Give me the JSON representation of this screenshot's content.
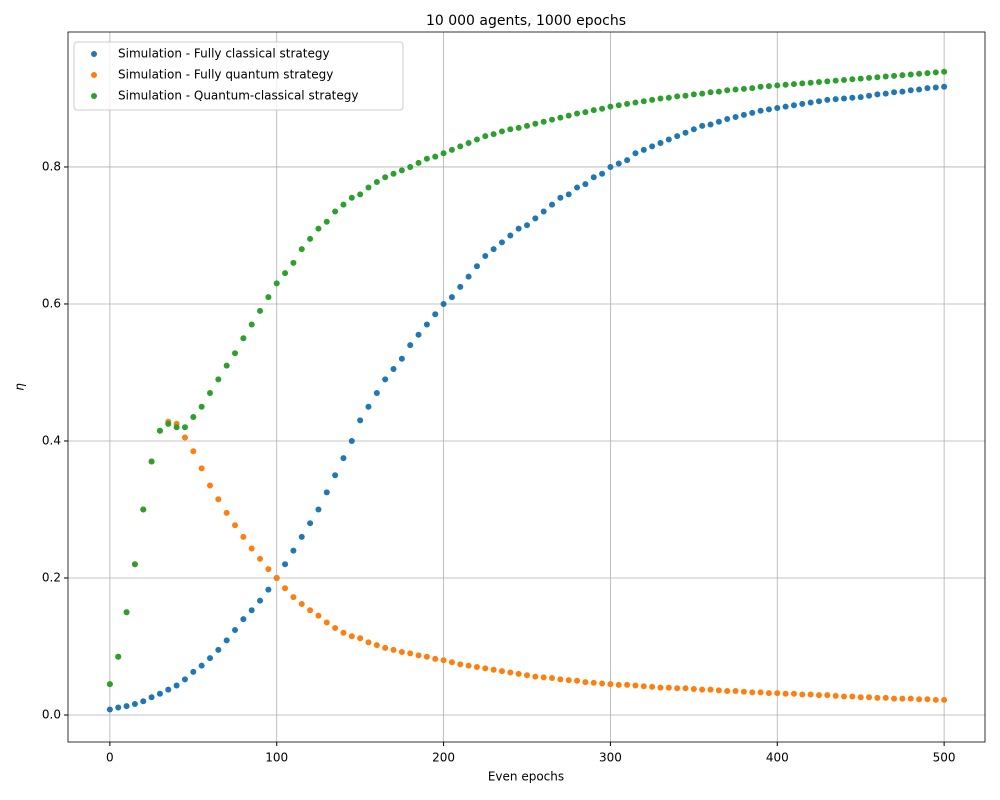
{
  "chart_data": {
    "type": "scatter",
    "title": "10 000 agents, 1000 epochs",
    "xlabel": "Even epochs",
    "ylabel": "η",
    "x": [
      0,
      5,
      10,
      15,
      20,
      25,
      30,
      35,
      40,
      45,
      50,
      55,
      60,
      65,
      70,
      75,
      80,
      85,
      90,
      95,
      100,
      105,
      110,
      115,
      120,
      125,
      130,
      135,
      140,
      145,
      150,
      155,
      160,
      165,
      170,
      175,
      180,
      185,
      190,
      195,
      200,
      205,
      210,
      215,
      220,
      225,
      230,
      235,
      240,
      245,
      250,
      255,
      260,
      265,
      270,
      275,
      280,
      285,
      290,
      295,
      300,
      305,
      310,
      315,
      320,
      325,
      330,
      335,
      340,
      345,
      350,
      355,
      360,
      365,
      370,
      375,
      380,
      385,
      390,
      395,
      400,
      405,
      410,
      415,
      420,
      425,
      430,
      435,
      440,
      445,
      450,
      455,
      460,
      465,
      470,
      475,
      480,
      485,
      490,
      495,
      500
    ],
    "series": [
      {
        "name": "Simulation - Fully classical strategy",
        "color": "#1f77b4",
        "values": [
          0.008,
          0.011,
          0.013,
          0.016,
          0.02,
          0.026,
          0.031,
          0.037,
          0.043,
          0.052,
          0.063,
          0.072,
          0.083,
          0.095,
          0.109,
          0.124,
          0.14,
          0.153,
          0.167,
          0.183,
          0.2,
          0.22,
          0.24,
          0.26,
          0.28,
          0.3,
          0.325,
          0.35,
          0.375,
          0.4,
          0.43,
          0.45,
          0.47,
          0.49,
          0.505,
          0.52,
          0.54,
          0.555,
          0.57,
          0.585,
          0.6,
          0.61,
          0.625,
          0.64,
          0.655,
          0.67,
          0.68,
          0.69,
          0.7,
          0.71,
          0.715,
          0.725,
          0.735,
          0.745,
          0.755,
          0.76,
          0.77,
          0.775,
          0.785,
          0.79,
          0.8,
          0.805,
          0.81,
          0.82,
          0.825,
          0.83,
          0.835,
          0.84,
          0.845,
          0.85,
          0.855,
          0.86,
          0.862,
          0.866,
          0.87,
          0.873,
          0.876,
          0.879,
          0.882,
          0.884,
          0.886,
          0.888,
          0.89,
          0.892,
          0.894,
          0.896,
          0.898,
          0.899,
          0.9,
          0.901,
          0.902,
          0.904,
          0.906,
          0.907,
          0.909,
          0.91,
          0.912,
          0.913,
          0.915,
          0.916,
          0.917
        ]
      },
      {
        "name": "Simulation - Fully quantum strategy",
        "color": "#ff7f0e",
        "values": [
          0.045,
          0.085,
          0.15,
          0.22,
          0.3,
          0.37,
          0.415,
          0.428,
          0.425,
          0.405,
          0.385,
          0.36,
          0.335,
          0.315,
          0.295,
          0.277,
          0.26,
          0.243,
          0.228,
          0.213,
          0.2,
          0.185,
          0.172,
          0.162,
          0.153,
          0.145,
          0.135,
          0.127,
          0.12,
          0.115,
          0.112,
          0.106,
          0.102,
          0.098,
          0.095,
          0.092,
          0.09,
          0.087,
          0.085,
          0.082,
          0.08,
          0.077,
          0.074,
          0.072,
          0.07,
          0.068,
          0.066,
          0.064,
          0.062,
          0.06,
          0.058,
          0.056,
          0.055,
          0.054,
          0.052,
          0.051,
          0.05,
          0.048,
          0.047,
          0.046,
          0.045,
          0.044,
          0.044,
          0.043,
          0.042,
          0.041,
          0.04,
          0.04,
          0.039,
          0.039,
          0.038,
          0.037,
          0.037,
          0.036,
          0.035,
          0.035,
          0.034,
          0.033,
          0.033,
          0.032,
          0.032,
          0.031,
          0.031,
          0.03,
          0.03,
          0.029,
          0.029,
          0.028,
          0.027,
          0.027,
          0.026,
          0.026,
          0.025,
          0.025,
          0.024,
          0.024,
          0.024,
          0.023,
          0.023,
          0.022,
          0.022
        ]
      },
      {
        "name": "Simulation - Quantum-classical strategy",
        "color": "#2ca02c",
        "values": [
          0.045,
          0.085,
          0.15,
          0.22,
          0.3,
          0.37,
          0.415,
          0.425,
          0.42,
          0.42,
          0.435,
          0.45,
          0.47,
          0.49,
          0.51,
          0.528,
          0.55,
          0.57,
          0.59,
          0.61,
          0.63,
          0.645,
          0.66,
          0.68,
          0.695,
          0.71,
          0.72,
          0.735,
          0.745,
          0.755,
          0.76,
          0.77,
          0.778,
          0.785,
          0.79,
          0.795,
          0.8,
          0.806,
          0.812,
          0.815,
          0.82,
          0.825,
          0.83,
          0.835,
          0.84,
          0.845,
          0.848,
          0.852,
          0.855,
          0.857,
          0.86,
          0.863,
          0.866,
          0.869,
          0.872,
          0.875,
          0.878,
          0.88,
          0.883,
          0.885,
          0.888,
          0.89,
          0.892,
          0.894,
          0.896,
          0.898,
          0.9,
          0.901,
          0.903,
          0.904,
          0.906,
          0.907,
          0.909,
          0.91,
          0.912,
          0.913,
          0.914,
          0.915,
          0.917,
          0.918,
          0.919,
          0.92,
          0.921,
          0.922,
          0.923,
          0.924,
          0.925,
          0.926,
          0.927,
          0.928,
          0.929,
          0.93,
          0.931,
          0.932,
          0.933,
          0.934,
          0.935,
          0.936,
          0.937,
          0.938,
          0.939
        ]
      }
    ],
    "xlim": [
      -25.1,
      524.5
    ],
    "ylim": [
      -0.0394,
      0.997
    ],
    "xticks": [
      0,
      100,
      200,
      300,
      400,
      500
    ],
    "yticks": [
      {
        "value": 0,
        "label": "0.0"
      },
      0.2,
      0.4,
      0.6,
      0.8
    ],
    "grid": true,
    "legend": "upper left"
  }
}
